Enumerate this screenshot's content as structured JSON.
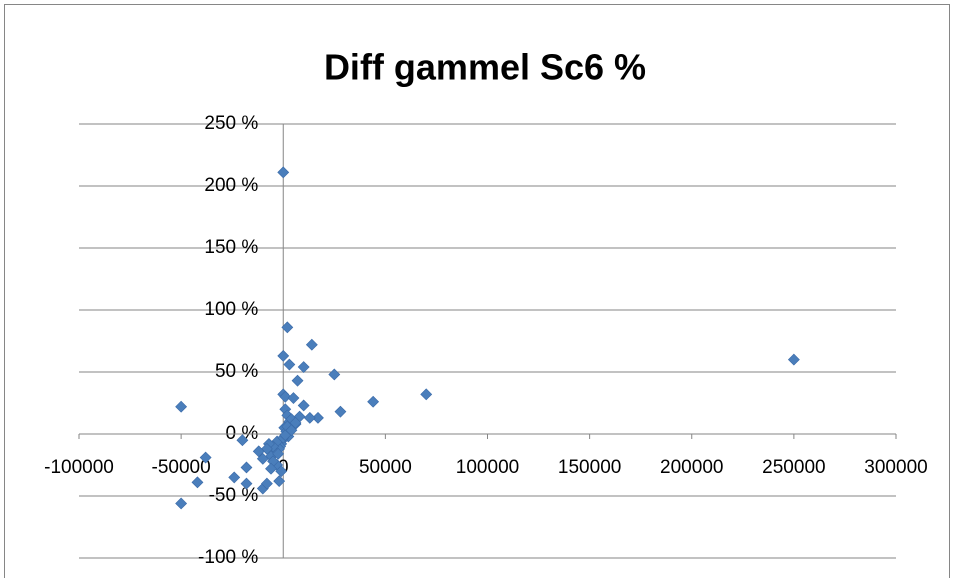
{
  "chart_data": {
    "type": "scatter",
    "title": "Diff gammel Sc6 %",
    "xlim": [
      -100000,
      300000
    ],
    "xticks": [
      -100000,
      -50000,
      0,
      50000,
      100000,
      150000,
      200000,
      250000,
      300000
    ],
    "ylim": [
      -100,
      250
    ],
    "yticks": [
      {
        "value": -100,
        "label": "-100 %"
      },
      {
        "value": -50,
        "label": "-50 %"
      },
      {
        "value": 0,
        "label": "0 %"
      },
      {
        "value": 50,
        "label": "50 %"
      },
      {
        "value": 100,
        "label": "100 %"
      },
      {
        "value": 150,
        "label": "150 %"
      },
      {
        "value": 200,
        "label": "200 %"
      },
      {
        "value": 250,
        "label": "250 %"
      }
    ],
    "grid": true,
    "series": [
      {
        "color": "#4a7ebb",
        "x": [
          0,
          2000,
          0,
          3000,
          14000,
          10000,
          7000,
          25000,
          70000,
          44000,
          28000,
          17000,
          13000,
          250000,
          0,
          1000,
          5000,
          10000,
          -50000,
          -38000,
          -42000,
          -50000,
          -24000,
          -18000,
          -18000,
          -10000,
          -8000,
          -2000,
          -20000,
          1000,
          2000,
          3000,
          4000,
          6000,
          8000,
          500,
          1500,
          2500,
          -500,
          -1000,
          -1500,
          -2000,
          -3000,
          -4000,
          -5000,
          -6000,
          -7000,
          -8000,
          -10000,
          -12000,
          -3000,
          -5000,
          -1000,
          0,
          1000,
          2000,
          4000,
          6000,
          -2500,
          -6000
        ],
        "values": [
          211,
          86,
          63,
          56,
          72,
          54,
          43,
          48,
          32,
          26,
          18,
          13,
          13,
          60,
          32,
          30,
          29,
          23,
          22,
          -19,
          -39,
          -56,
          -35,
          -27,
          -40,
          -44,
          -40,
          -38,
          -5,
          20,
          15,
          10,
          12,
          8,
          14,
          5,
          2,
          -2,
          -5,
          -8,
          -10,
          -12,
          -6,
          -15,
          -10,
          -18,
          -8,
          -12,
          -20,
          -14,
          -25,
          -22,
          -30,
          -3,
          -1,
          6,
          3,
          9,
          -16,
          -28
        ]
      }
    ]
  }
}
